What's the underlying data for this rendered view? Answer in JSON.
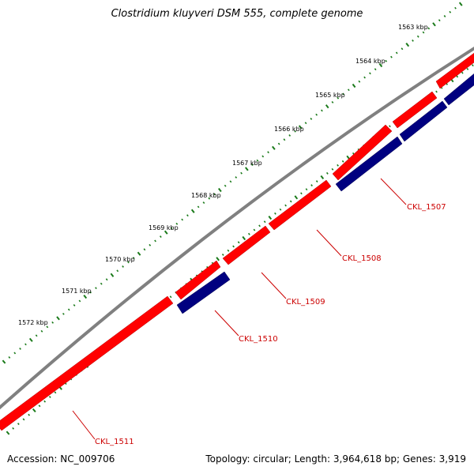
{
  "title": "Clostridium kluyveri DSM 555, complete genome",
  "accession": "Accession: NC_009706",
  "summary": "Topology: circular; Length: 3,964,618 bp; Genes: 3,919",
  "colors": {
    "backbone": "#808080",
    "forward_gene": "#ff0000",
    "reverse_gene": "#000080",
    "ruler": "#1a7a1a",
    "label": "#cc0000"
  },
  "ruler_ticks": [
    "1563 kbp",
    "1564 kbp",
    "1565 kbp",
    "1566 kbp",
    "1567 kbp",
    "1568 kbp",
    "1569 kbp",
    "1570 kbp",
    "1571 kbp",
    "1572 kbp"
  ],
  "genes": [
    {
      "name": "CKL_1507",
      "strand": "reverse"
    },
    {
      "name": "CKL_1508",
      "strand": "forward"
    },
    {
      "name": "CKL_1509",
      "strand": "forward"
    },
    {
      "name": "CKL_1510",
      "strand": "reverse"
    },
    {
      "name": "CKL_1511",
      "strand": "forward"
    }
  ]
}
